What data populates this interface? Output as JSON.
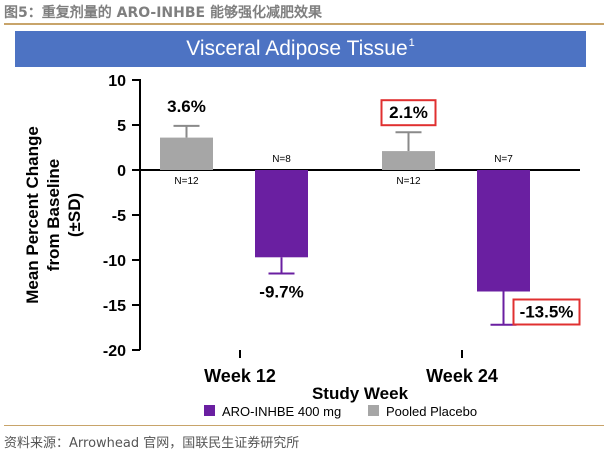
{
  "figure": {
    "caption": "图5：重复剂量的 ARO-INHBE 能够强化减肥效果",
    "source": "资料来源：Arrowhead 官网，国联民生证券研究所"
  },
  "colors": {
    "aro": "#6a1fa1",
    "placebo": "#a6a6a6",
    "banner": "#4d73c3",
    "highlight": "#e03030"
  },
  "chart_data": {
    "type": "bar",
    "title": "Visceral Adipose Tissue",
    "title_sup": "1",
    "xlabel": "Study Week",
    "ylabel": [
      "Mean  Percent Change",
      "from Baseline",
      "(±SD)"
    ],
    "ylim": [
      -20,
      10
    ],
    "yticks": [
      10,
      5,
      0,
      -5,
      -10,
      -15,
      -20
    ],
    "categories": [
      "Week 12",
      "Week 24"
    ],
    "legend_position": "bottom",
    "series": [
      {
        "name": "ARO-INHBE 400 mg",
        "values": [
          -9.7,
          -13.5
        ],
        "error_low": [
          -11.5,
          -17.2
        ],
        "labels": [
          "-9.7%",
          "-13.5%"
        ],
        "n_labels": [
          "N=8",
          "N=7"
        ],
        "highlighted": [
          false,
          true
        ]
      },
      {
        "name": "Pooled Placebo",
        "values": [
          3.6,
          2.1
        ],
        "error_high": [
          4.9,
          4.2
        ],
        "labels": [
          "3.6%",
          "2.1%"
        ],
        "n_labels": [
          "N=12",
          "N=12"
        ],
        "highlighted": [
          false,
          true
        ]
      }
    ]
  }
}
